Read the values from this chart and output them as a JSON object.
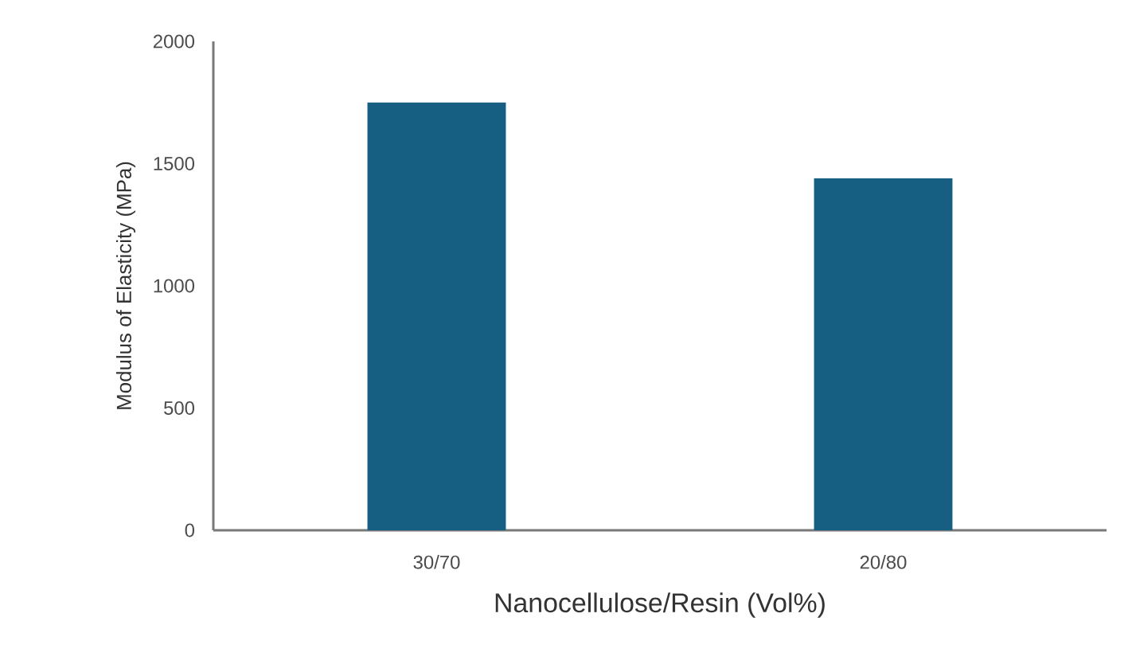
{
  "chart_data": {
    "type": "bar",
    "xlabel": "Nanocellulose/Resin (Vol%)",
    "ylabel": "Modulus of Elasticity (MPa)",
    "categories": [
      "30/70",
      "20/80"
    ],
    "values": [
      1750,
      1440
    ],
    "color": "#175f82",
    "ylim": [
      0,
      2000
    ],
    "yticks": [
      0,
      500,
      1000,
      1500,
      2000
    ],
    "grid": false
  }
}
